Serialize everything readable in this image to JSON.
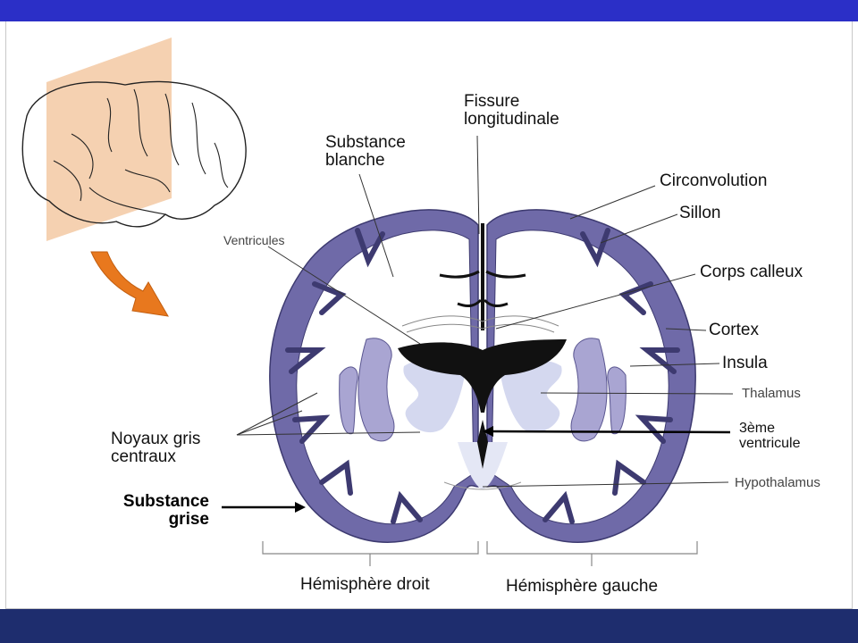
{
  "labels": {
    "fissure": [
      "Fissure",
      "longitudinale"
    ],
    "substance_blanche": [
      "Substance",
      "blanche"
    ],
    "circonvolution": "Circonvolution",
    "sillon": "Sillon",
    "ventricules": "Ventricules",
    "corps_calleux": "Corps calleux",
    "cortex": "Cortex",
    "insula": "Insula",
    "thalamus": "Thalamus",
    "troisieme_ventricule": [
      "3ème",
      "ventricule"
    ],
    "noyaux": [
      "Noyaux gris",
      "centraux"
    ],
    "hypothalamus": "Hypothalamus",
    "substance_grise": [
      "Substance",
      "grise"
    ],
    "hemisphere_droit": "Hémisphère droit",
    "hemisphere_gauche": "Hémisphère gauche"
  },
  "colors": {
    "top_bar": "#2b2fc7",
    "bottom_bar": "#1e2d6e",
    "cortex_fill": "#6f6aa8",
    "nuclei_fill": "#a9a5d2",
    "thalamus_fill": "#d4d8ef",
    "ventricle_fill": "#111111",
    "plane_fill": "#f3c9a3",
    "arrow_fill": "#e8781e"
  }
}
